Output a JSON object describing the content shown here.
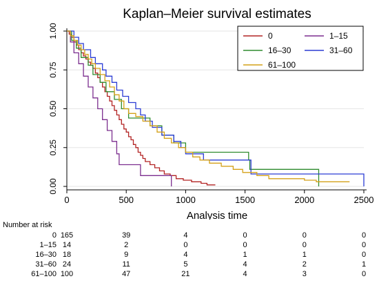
{
  "chart_data": {
    "type": "line",
    "title": "Kaplan–Meier survival estimates",
    "xlabel": "Analysis time",
    "ylabel": "",
    "xlim": [
      0,
      2500
    ],
    "ylim": [
      0,
      1
    ],
    "xticks": [
      "0",
      "500",
      "1000",
      "1500",
      "2000",
      "2500"
    ],
    "yticks": [
      "0.00",
      "0.25",
      "0.50",
      "0.75",
      "1.00"
    ],
    "grid": "horizontal",
    "legend_position": "top-right",
    "series": [
      {
        "name": "0",
        "color": "#b22222",
        "points": [
          [
            0,
            1.0
          ],
          [
            20,
            0.98
          ],
          [
            40,
            0.96
          ],
          [
            60,
            0.93
          ],
          [
            80,
            0.91
          ],
          [
            100,
            0.88
          ],
          [
            120,
            0.86
          ],
          [
            140,
            0.84
          ],
          [
            160,
            0.82
          ],
          [
            180,
            0.8
          ],
          [
            200,
            0.78
          ],
          [
            220,
            0.76
          ],
          [
            240,
            0.73
          ],
          [
            260,
            0.7
          ],
          [
            280,
            0.67
          ],
          [
            300,
            0.64
          ],
          [
            320,
            0.61
          ],
          [
            340,
            0.58
          ],
          [
            360,
            0.55
          ],
          [
            380,
            0.52
          ],
          [
            400,
            0.49
          ],
          [
            420,
            0.46
          ],
          [
            440,
            0.43
          ],
          [
            460,
            0.4
          ],
          [
            480,
            0.37
          ],
          [
            500,
            0.35
          ],
          [
            520,
            0.32
          ],
          [
            540,
            0.3
          ],
          [
            560,
            0.27
          ],
          [
            580,
            0.25
          ],
          [
            600,
            0.22
          ],
          [
            620,
            0.2
          ],
          [
            640,
            0.18
          ],
          [
            660,
            0.16
          ],
          [
            700,
            0.14
          ],
          [
            740,
            0.12
          ],
          [
            780,
            0.1
          ],
          [
            820,
            0.08
          ],
          [
            870,
            0.07
          ],
          [
            920,
            0.05
          ],
          [
            980,
            0.04
          ],
          [
            1050,
            0.03
          ],
          [
            1130,
            0.02
          ],
          [
            1180,
            0.01
          ],
          [
            1250,
            0.01
          ]
        ]
      },
      {
        "name": "1–15",
        "color": "#7b2d8e",
        "points": [
          [
            0,
            1.0
          ],
          [
            30,
            0.93
          ],
          [
            60,
            0.86
          ],
          [
            100,
            0.79
          ],
          [
            140,
            0.71
          ],
          [
            180,
            0.64
          ],
          [
            220,
            0.57
          ],
          [
            260,
            0.5
          ],
          [
            300,
            0.43
          ],
          [
            340,
            0.36
          ],
          [
            380,
            0.29
          ],
          [
            420,
            0.21
          ],
          [
            440,
            0.14
          ],
          [
            600,
            0.14
          ],
          [
            620,
            0.07
          ],
          [
            880,
            0.07
          ],
          [
            880,
            0.0
          ]
        ]
      },
      {
        "name": "16–30",
        "color": "#2e8b2e",
        "points": [
          [
            0,
            1.0
          ],
          [
            40,
            0.94
          ],
          [
            80,
            0.89
          ],
          [
            120,
            0.83
          ],
          [
            180,
            0.78
          ],
          [
            220,
            0.72
          ],
          [
            280,
            0.67
          ],
          [
            330,
            0.61
          ],
          [
            400,
            0.56
          ],
          [
            460,
            0.5
          ],
          [
            520,
            0.44
          ],
          [
            600,
            0.44
          ],
          [
            700,
            0.39
          ],
          [
            800,
            0.33
          ],
          [
            900,
            0.28
          ],
          [
            1000,
            0.22
          ],
          [
            1530,
            0.17
          ],
          [
            1540,
            0.11
          ],
          [
            2120,
            0.11
          ],
          [
            2120,
            0.0
          ]
        ]
      },
      {
        "name": "31–60",
        "color": "#2a3bd4",
        "points": [
          [
            0,
            1.0
          ],
          [
            60,
            0.96
          ],
          [
            100,
            0.92
          ],
          [
            140,
            0.88
          ],
          [
            200,
            0.83
          ],
          [
            240,
            0.79
          ],
          [
            300,
            0.75
          ],
          [
            330,
            0.71
          ],
          [
            380,
            0.67
          ],
          [
            420,
            0.62
          ],
          [
            470,
            0.58
          ],
          [
            520,
            0.54
          ],
          [
            580,
            0.5
          ],
          [
            620,
            0.46
          ],
          [
            660,
            0.42
          ],
          [
            720,
            0.38
          ],
          [
            800,
            0.33
          ],
          [
            900,
            0.29
          ],
          [
            960,
            0.25
          ],
          [
            1000,
            0.21
          ],
          [
            1100,
            0.21
          ],
          [
            1150,
            0.17
          ],
          [
            1550,
            0.08
          ],
          [
            2500,
            0.08
          ],
          [
            2500,
            0.0
          ]
        ]
      },
      {
        "name": "61–100",
        "color": "#d4a017",
        "points": [
          [
            0,
            1.0
          ],
          [
            30,
            0.97
          ],
          [
            60,
            0.94
          ],
          [
            90,
            0.91
          ],
          [
            120,
            0.88
          ],
          [
            150,
            0.85
          ],
          [
            180,
            0.82
          ],
          [
            210,
            0.79
          ],
          [
            240,
            0.76
          ],
          [
            280,
            0.72
          ],
          [
            320,
            0.68
          ],
          [
            360,
            0.64
          ],
          [
            400,
            0.59
          ],
          [
            440,
            0.55
          ],
          [
            480,
            0.5
          ],
          [
            520,
            0.47
          ],
          [
            580,
            0.45
          ],
          [
            640,
            0.42
          ],
          [
            700,
            0.39
          ],
          [
            760,
            0.35
          ],
          [
            820,
            0.31
          ],
          [
            880,
            0.28
          ],
          [
            940,
            0.25
          ],
          [
            1000,
            0.22
          ],
          [
            1060,
            0.19
          ],
          [
            1120,
            0.17
          ],
          [
            1200,
            0.15
          ],
          [
            1300,
            0.13
          ],
          [
            1400,
            0.11
          ],
          [
            1480,
            0.09
          ],
          [
            1600,
            0.07
          ],
          [
            1700,
            0.05
          ],
          [
            2000,
            0.04
          ],
          [
            2100,
            0.03
          ],
          [
            2380,
            0.03
          ]
        ]
      }
    ],
    "risk_table": {
      "title": "Number at risk",
      "groups": [
        {
          "label": "0",
          "counts": [
            "165",
            "39",
            "4",
            "0",
            "0",
            "0"
          ]
        },
        {
          "label": "1–15",
          "counts": [
            "14",
            "2",
            "0",
            "0",
            "0",
            "0"
          ]
        },
        {
          "label": "16–30",
          "counts": [
            "18",
            "9",
            "4",
            "1",
            "1",
            "0"
          ]
        },
        {
          "label": "31–60",
          "counts": [
            "24",
            "11",
            "5",
            "4",
            "2",
            "1"
          ]
        },
        {
          "label": "61–100",
          "counts": [
            "100",
            "47",
            "21",
            "4",
            "3",
            "0"
          ]
        }
      ]
    }
  }
}
